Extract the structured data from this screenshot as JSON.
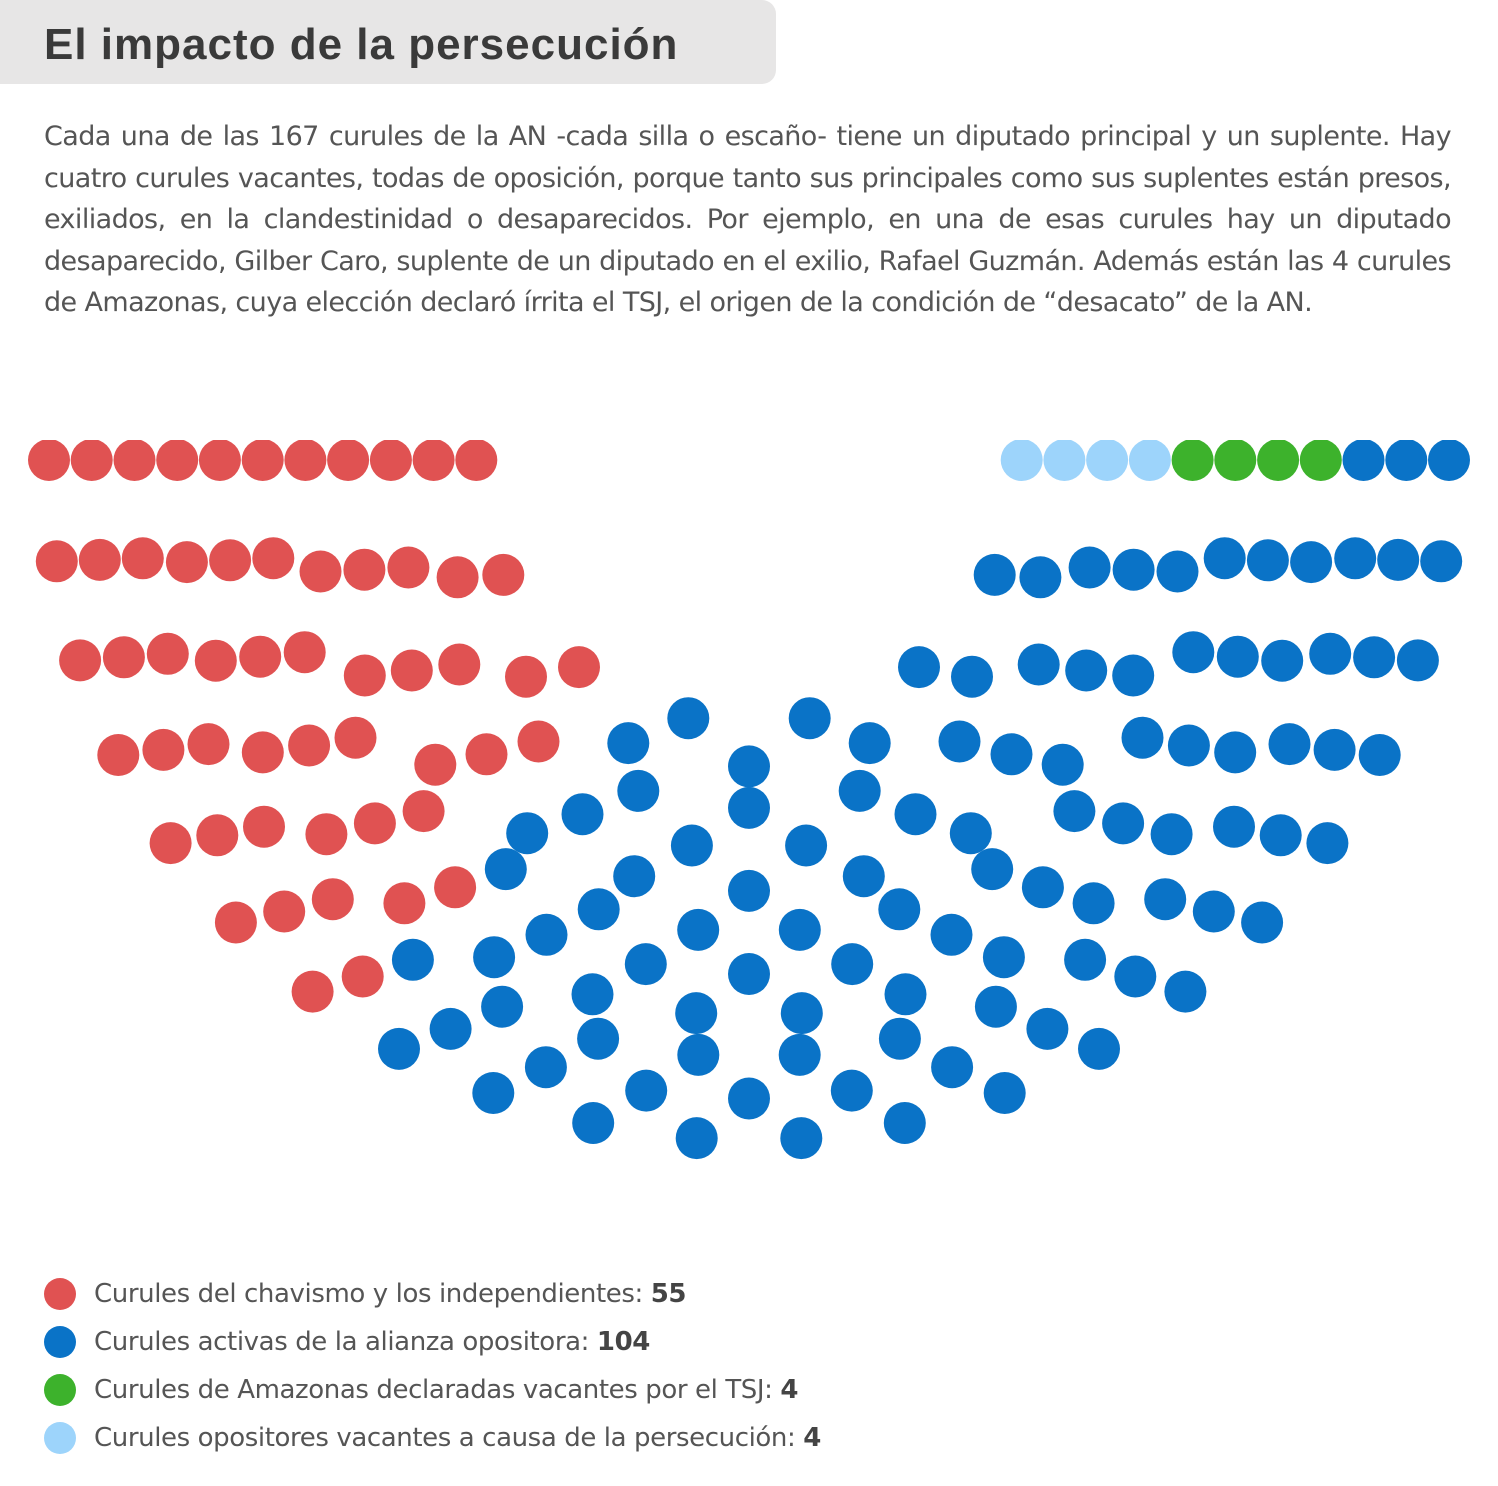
{
  "header": {
    "title": "El impacto de la persecución"
  },
  "intro": {
    "text": "Cada una de las 167 curules de la AN -cada silla o escaño- tiene un diputado principal y un suplente. Hay cuatro curules vacantes, todas de oposición, porque tanto sus principales como sus suplentes están presos, exiliados, en la clandestinidad o desaparecidos. Por ejemplo, en una de esas curules hay un diputado desaparecido, Gilber Caro, suplente de un diputado en el exilio, Rafael Guzmán. Además están las 4 curules de Amazonas, cuya elección declaró írrita el TSJ, el origen de la condición de “desacato” de la AN."
  },
  "chart_data": {
    "type": "parliament",
    "total": 167,
    "series": [
      {
        "name": "Curules del chavismo y los independientes",
        "label": "Curules del chavismo y los independientes: ",
        "value": 55,
        "color": "#e05252"
      },
      {
        "name": "Curules activas de la alianza opositora",
        "label": "Curules activas de la alianza opositora: ",
        "value": 104,
        "color": "#0a73c7"
      },
      {
        "name": "Curules de Amazonas declaradas vacantes por el TSJ",
        "label": "Curules de Amazonas declaradas vacantes por el TSJ: ",
        "value": 4,
        "color": "#3db22c"
      },
      {
        "name": "Curules opositores vacantes a causa de la persecución",
        "label": "Curules opositores vacantes a causa de la persecución: ",
        "value": 4,
        "color": "#9dd4fb"
      }
    ]
  }
}
